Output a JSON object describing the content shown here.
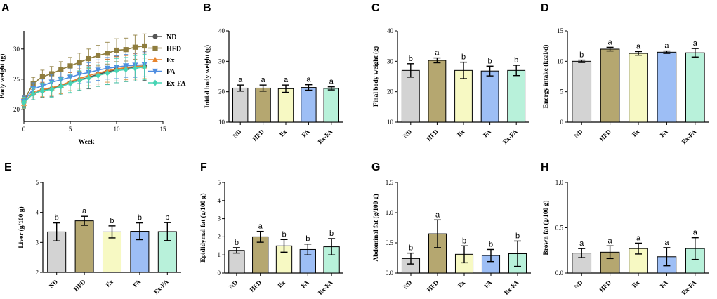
{
  "colors": {
    "ND": "#d3d3d3",
    "HFD": "#b5a770",
    "Ex": "#f7f9c3",
    "FA": "#9dbef5",
    "Ex-FA": "#b8f1da",
    "line_ND": "#555555",
    "line_HFD": "#8f7d3e",
    "line_Ex": "#e8842c",
    "line_FA": "#4f8de0",
    "line_ExFA": "#47d4b4"
  },
  "chart_data": [
    {
      "id": "A",
      "type": "line",
      "panel_label": "A",
      "title": "",
      "xlabel": "Week",
      "ylabel": "Body weight (g)",
      "xlim": [
        0,
        15
      ],
      "ylim": [
        18,
        33
      ],
      "xticks": [
        "0",
        "5",
        "10",
        "15"
      ],
      "yticks": [
        "20",
        "25",
        "30"
      ],
      "x": [
        0,
        1,
        2,
        3,
        4,
        5,
        6,
        7,
        8,
        9,
        10,
        11,
        12,
        13
      ],
      "legend_position": "right",
      "series": [
        {
          "name": "ND",
          "marker": "circle",
          "values": [
            21.2,
            22.6,
            23.2,
            23.4,
            23.9,
            24.4,
            24.9,
            25.3,
            25.8,
            26.2,
            26.6,
            26.8,
            27.0,
            27.2
          ],
          "err": [
            0.9,
            1.0,
            1.2,
            1.3,
            1.5,
            1.7,
            1.8,
            1.9,
            2.0,
            2.1,
            2.2,
            2.2,
            2.3,
            2.4
          ]
        },
        {
          "name": "HFD",
          "marker": "square",
          "values": [
            21.4,
            24.3,
            25.4,
            25.9,
            26.6,
            27.2,
            27.8,
            28.4,
            28.9,
            29.3,
            29.8,
            29.9,
            30.3,
            30.5
          ],
          "err": [
            0.9,
            1.0,
            1.1,
            1.2,
            1.3,
            1.4,
            1.5,
            1.6,
            1.7,
            1.8,
            1.9,
            1.9,
            2.0,
            2.0
          ]
        },
        {
          "name": "Ex",
          "marker": "triangle",
          "values": [
            21.0,
            22.9,
            23.3,
            23.6,
            24.0,
            24.6,
            25.1,
            25.6,
            26.0,
            26.4,
            26.7,
            26.9,
            27.1,
            27.2
          ],
          "err": [
            0.9,
            1.0,
            1.2,
            1.3,
            1.4,
            1.5,
            1.6,
            1.7,
            1.8,
            1.9,
            2.0,
            2.0,
            2.1,
            2.1
          ]
        },
        {
          "name": "FA",
          "marker": "triangle-down",
          "values": [
            21.3,
            23.4,
            23.9,
            24.5,
            24.9,
            25.3,
            25.8,
            26.1,
            26.5,
            26.8,
            27.0,
            27.2,
            27.3,
            27.4
          ],
          "err": [
            0.9,
            1.0,
            1.1,
            1.2,
            1.3,
            1.4,
            1.5,
            1.6,
            1.7,
            1.8,
            1.9,
            1.9,
            2.0,
            2.0
          ]
        },
        {
          "name": "Ex-FA",
          "marker": "diamond",
          "values": [
            21.1,
            22.6,
            23.1,
            23.3,
            23.8,
            24.3,
            24.8,
            25.2,
            25.6,
            26.0,
            26.4,
            26.6,
            26.8,
            27.0
          ],
          "err": [
            0.9,
            1.0,
            1.2,
            1.3,
            1.4,
            1.5,
            1.6,
            1.7,
            1.8,
            1.9,
            2.0,
            2.0,
            2.1,
            2.1
          ]
        }
      ]
    },
    {
      "id": "B",
      "type": "bar",
      "panel_label": "B",
      "ylabel": "Initial body weight (g)",
      "ylim": [
        10,
        40
      ],
      "yticks": [
        "10",
        "20",
        "30",
        "40"
      ],
      "categories": [
        "ND",
        "HFD",
        "Ex",
        "FA",
        "Ex-FA"
      ],
      "values": [
        21.2,
        21.2,
        21.0,
        21.4,
        21.1
      ],
      "err": [
        1.0,
        1.0,
        1.2,
        0.9,
        0.5
      ],
      "letters": [
        "a",
        "a",
        "a",
        "a",
        "a"
      ]
    },
    {
      "id": "C",
      "type": "bar",
      "panel_label": "C",
      "ylabel": "Final body weight (g)",
      "ylim": [
        10,
        40
      ],
      "yticks": [
        "10",
        "20",
        "30",
        "40"
      ],
      "categories": [
        "ND",
        "HFD",
        "Ex",
        "FA",
        "Ex-FA"
      ],
      "values": [
        27.0,
        30.3,
        27.0,
        26.8,
        27.0
      ],
      "err": [
        2.2,
        0.8,
        2.7,
        1.6,
        1.7
      ],
      "letters": [
        "b",
        "a",
        "b",
        "b",
        "b"
      ]
    },
    {
      "id": "D",
      "type": "bar",
      "panel_label": "D",
      "ylabel": "Energy intake (kcal/d)",
      "ylim": [
        0,
        15
      ],
      "yticks": [
        "0",
        "5",
        "10",
        "15"
      ],
      "categories": [
        "ND",
        "HFD",
        "Ex",
        "FA",
        "Ex-FA"
      ],
      "values": [
        10.0,
        12.0,
        11.3,
        11.5,
        11.4
      ],
      "err": [
        0.2,
        0.3,
        0.3,
        0.2,
        0.7
      ],
      "letters": [
        "b",
        "a",
        "a",
        "a",
        "a"
      ]
    },
    {
      "id": "E",
      "type": "bar",
      "panel_label": "E",
      "ylabel": "Liver (g/100 g)",
      "ylim": [
        2,
        5
      ],
      "yticks": [
        "2",
        "3",
        "4",
        "5"
      ],
      "categories": [
        "ND",
        "HFD",
        "Ex",
        "FA",
        "Ex-FA"
      ],
      "values": [
        3.35,
        3.72,
        3.35,
        3.37,
        3.36
      ],
      "err": [
        0.3,
        0.15,
        0.2,
        0.28,
        0.3
      ],
      "letters": [
        "b",
        "a",
        "b",
        "b",
        "b"
      ]
    },
    {
      "id": "F",
      "type": "bar",
      "panel_label": "F",
      "ylabel": "Epididymal fat (g/100 g)",
      "ylim": [
        0,
        5
      ],
      "yticks": [
        "0",
        "1",
        "2",
        "3",
        "4",
        "5"
      ],
      "categories": [
        "ND",
        "HFD",
        "Ex",
        "FA",
        "Ex-FA"
      ],
      "values": [
        1.25,
        2.0,
        1.5,
        1.3,
        1.45
      ],
      "err": [
        0.15,
        0.3,
        0.35,
        0.3,
        0.45
      ],
      "letters": [
        "b",
        "a",
        "b",
        "b",
        "b"
      ]
    },
    {
      "id": "G",
      "type": "bar",
      "panel_label": "G",
      "ylabel": "Abdominal fat (g/100 g)",
      "ylim": [
        0,
        1.5
      ],
      "yticks": [
        "0.0",
        "0.5",
        "1.0",
        "1.5"
      ],
      "categories": [
        "ND",
        "HFD",
        "Ex",
        "FA",
        "Ex-FA"
      ],
      "values": [
        0.24,
        0.65,
        0.31,
        0.29,
        0.32
      ],
      "err": [
        0.09,
        0.23,
        0.14,
        0.1,
        0.21
      ],
      "letters": [
        "b",
        "a",
        "b",
        "b",
        "b"
      ]
    },
    {
      "id": "H",
      "type": "bar",
      "panel_label": "H",
      "ylabel": "Brown fat (g/100 g)",
      "ylim": [
        0,
        1.0
      ],
      "yticks": [
        "0.0",
        "0.5",
        "1.0"
      ],
      "categories": [
        "ND",
        "HFD",
        "Ex",
        "FA",
        "Ex-FA"
      ],
      "values": [
        0.22,
        0.23,
        0.27,
        0.18,
        0.27
      ],
      "err": [
        0.05,
        0.07,
        0.06,
        0.1,
        0.12
      ],
      "letters": [
        "a",
        "a",
        "a",
        "a",
        "a"
      ]
    }
  ]
}
